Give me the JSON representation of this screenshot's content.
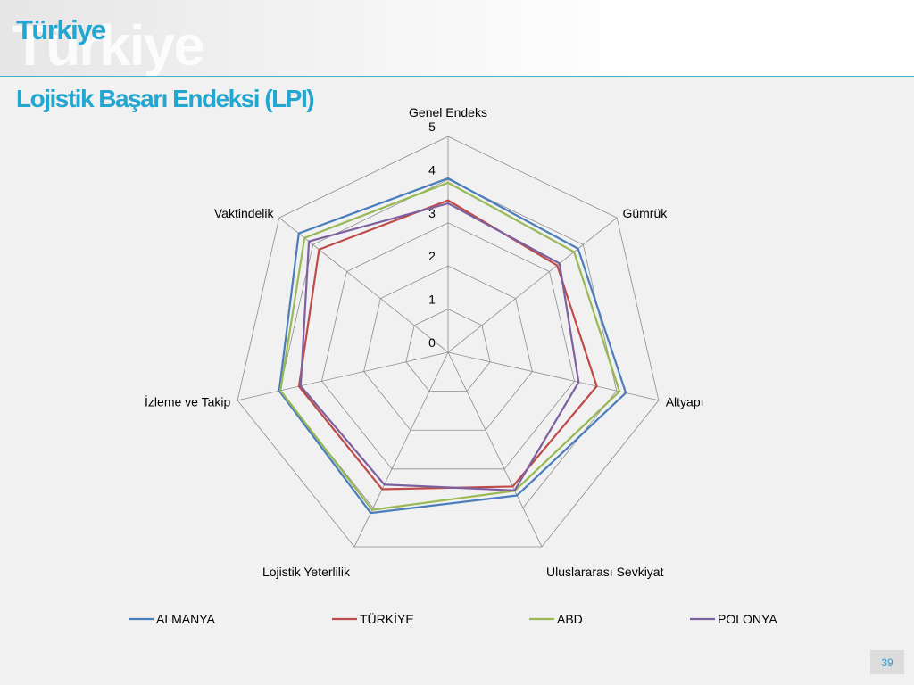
{
  "slide": {
    "title": "Türkiye",
    "watermark": "Türkiye",
    "subtitle": "Lojistik Başarı Endeksi (LPI)",
    "page_number": "39"
  },
  "chart_data": {
    "type": "radar",
    "title": "",
    "axes": [
      "Genel Endeks",
      "Gümrük",
      "Altyapı",
      "Uluslararası Sevkiyat",
      "Lojistik Yeterlilik",
      "İzleme ve Takip",
      "Vaktindelik"
    ],
    "ticks": [
      0,
      1,
      2,
      3,
      4,
      5
    ],
    "rlim": [
      0,
      5
    ],
    "grid": true,
    "legend": "bottom",
    "series": [
      {
        "name": "ALMANYA",
        "color": "#4a7ebb",
        "values": [
          4.03,
          3.85,
          4.22,
          3.68,
          4.13,
          4.01,
          4.42
        ]
      },
      {
        "name": "TÜRKİYE",
        "color": "#be4b48",
        "values": [
          3.52,
          3.23,
          3.53,
          3.45,
          3.52,
          3.54,
          3.82
        ]
      },
      {
        "name": "ABD",
        "color": "#98b954",
        "values": [
          3.93,
          3.73,
          4.07,
          3.56,
          4.05,
          3.98,
          4.25
        ]
      },
      {
        "name": "POLONYA",
        "color": "#7d60a0",
        "values": [
          3.45,
          3.3,
          3.1,
          3.55,
          3.4,
          3.5,
          4.12
        ]
      }
    ]
  }
}
